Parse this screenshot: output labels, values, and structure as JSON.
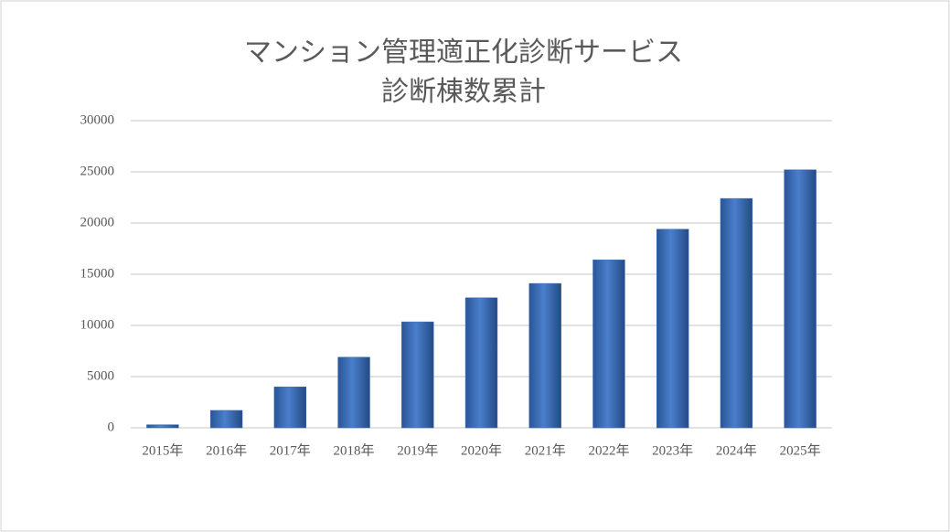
{
  "chart_data": {
    "type": "bar",
    "title": [
      "マンション管理適正化診断サービス",
      "診断棟数累計"
    ],
    "categories": [
      "2015年",
      "2016年",
      "2017年",
      "2018年",
      "2019年",
      "2020年",
      "2021年",
      "2022年",
      "2023年",
      "2024年",
      "2025年"
    ],
    "values": [
      300,
      1700,
      4000,
      6900,
      10350,
      12700,
      14100,
      16400,
      19400,
      22400,
      25200
    ],
    "color": "#3a6db5",
    "ylim": [
      0,
      30000
    ],
    "yticks": [
      0,
      5000,
      10000,
      15000,
      20000,
      25000,
      30000
    ],
    "grid": true
  }
}
